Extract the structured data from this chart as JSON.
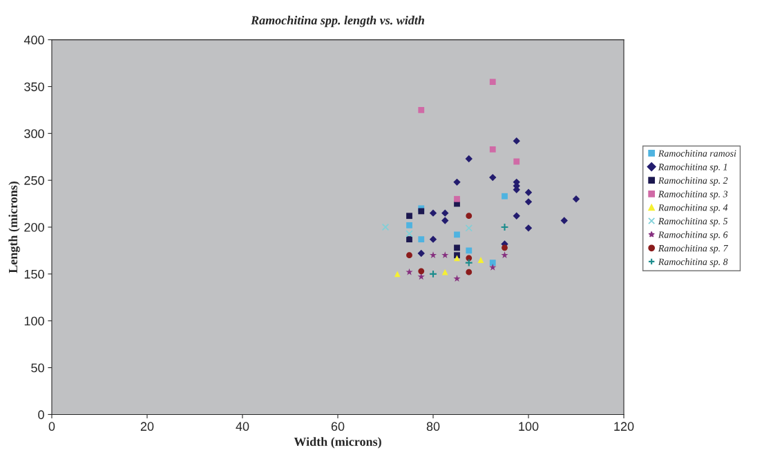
{
  "chart_data": {
    "type": "scatter",
    "title": "Ramochitina spp. length vs. width",
    "xlabel": "Width (microns)",
    "ylabel": "Length (microns)",
    "xlim": [
      0,
      120
    ],
    "ylim": [
      0,
      400
    ],
    "xticks": [
      0,
      20,
      40,
      60,
      80,
      100,
      120
    ],
    "yticks": [
      0,
      50,
      100,
      150,
      200,
      250,
      300,
      350,
      400
    ],
    "grid": false,
    "legend": "right",
    "series": [
      {
        "name": "Ramochitina ramosi",
        "color": "#4fb3e0",
        "marker": "square",
        "x": [
          77.5,
          75,
          77.5,
          85,
          87.5,
          95,
          92.5
        ],
        "values": [
          220,
          202,
          187,
          192,
          175,
          233,
          162
        ]
      },
      {
        "name": "Ramochitina sp. 1",
        "color": "#231c6e",
        "marker": "diamond",
        "x": [
          77.5,
          80,
          80,
          82.5,
          82.5,
          85,
          87.5,
          97.5,
          92.5,
          97.5,
          97.5,
          97.5,
          100,
          100,
          110,
          97.5,
          107.5,
          100,
          95
        ],
        "values": [
          172,
          187,
          215,
          215,
          207,
          248,
          273,
          292,
          253,
          248,
          244,
          240,
          237,
          227,
          230,
          212,
          207,
          199,
          182
        ]
      },
      {
        "name": "Ramochitina sp. 2",
        "color": "#1c1850",
        "marker": "square",
        "x": [
          75,
          77.5,
          75,
          85,
          85,
          85
        ],
        "values": [
          212,
          217,
          187,
          225,
          178,
          170
        ]
      },
      {
        "name": "Ramochitina sp. 3",
        "color": "#d06aa6",
        "marker": "square",
        "x": [
          77.5,
          92.5,
          92.5,
          97.5,
          85
        ],
        "values": [
          325,
          355,
          283,
          270,
          230
        ]
      },
      {
        "name": "Ramochitina sp. 4",
        "color": "#f5f032",
        "marker": "triangle",
        "x": [
          72.5,
          82.5,
          85,
          90
        ],
        "values": [
          150,
          152,
          167,
          165
        ]
      },
      {
        "name": "Ramochitina sp. 5",
        "color": "#7fd0d8",
        "marker": "cross",
        "x": [
          70,
          75,
          87.5
        ],
        "values": [
          200,
          193,
          199
        ]
      },
      {
        "name": "Ramochitina sp. 6",
        "color": "#86307f",
        "marker": "star",
        "x": [
          75,
          77.5,
          80,
          82.5,
          85,
          95,
          92.5
        ],
        "values": [
          152,
          147,
          170,
          170,
          145,
          170,
          157
        ]
      },
      {
        "name": "Ramochitina sp. 7",
        "color": "#8b1c1c",
        "marker": "circle",
        "x": [
          75,
          77.5,
          87.5,
          87.5,
          87.5,
          95
        ],
        "values": [
          170,
          153,
          212,
          167,
          152,
          178
        ]
      },
      {
        "name": "Ramochitina sp. 8",
        "color": "#1a8c8c",
        "marker": "plus",
        "x": [
          80,
          87.5,
          95
        ],
        "values": [
          150,
          162,
          200
        ]
      }
    ]
  }
}
